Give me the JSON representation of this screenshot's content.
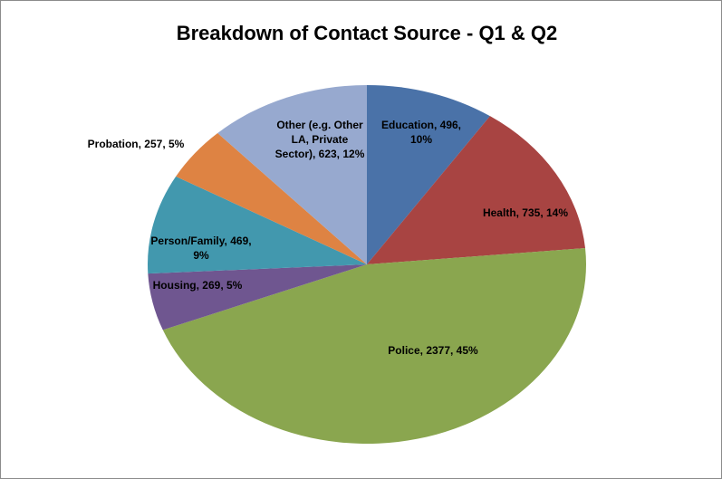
{
  "chart_data": {
    "type": "pie",
    "title": "Breakdown of Contact Source - Q1 & Q2",
    "values": [
      496,
      735,
      2377,
      269,
      469,
      257,
      623
    ],
    "value_labels": [
      "Education, 496, 10%",
      "Health, 735, 14%",
      "Police, 2377, 45%",
      "Housing, 269, 5%",
      "Person/Family, 469, 9%",
      "Probation, 257, 5%",
      "Other (e.g. Other LA, Private Sector), 623, 12%"
    ],
    "colors": [
      "#4a72a8",
      "#a84442",
      "#8aa64f",
      "#6f5690",
      "#4298ae",
      "#de8343",
      "#97a9cf"
    ]
  }
}
